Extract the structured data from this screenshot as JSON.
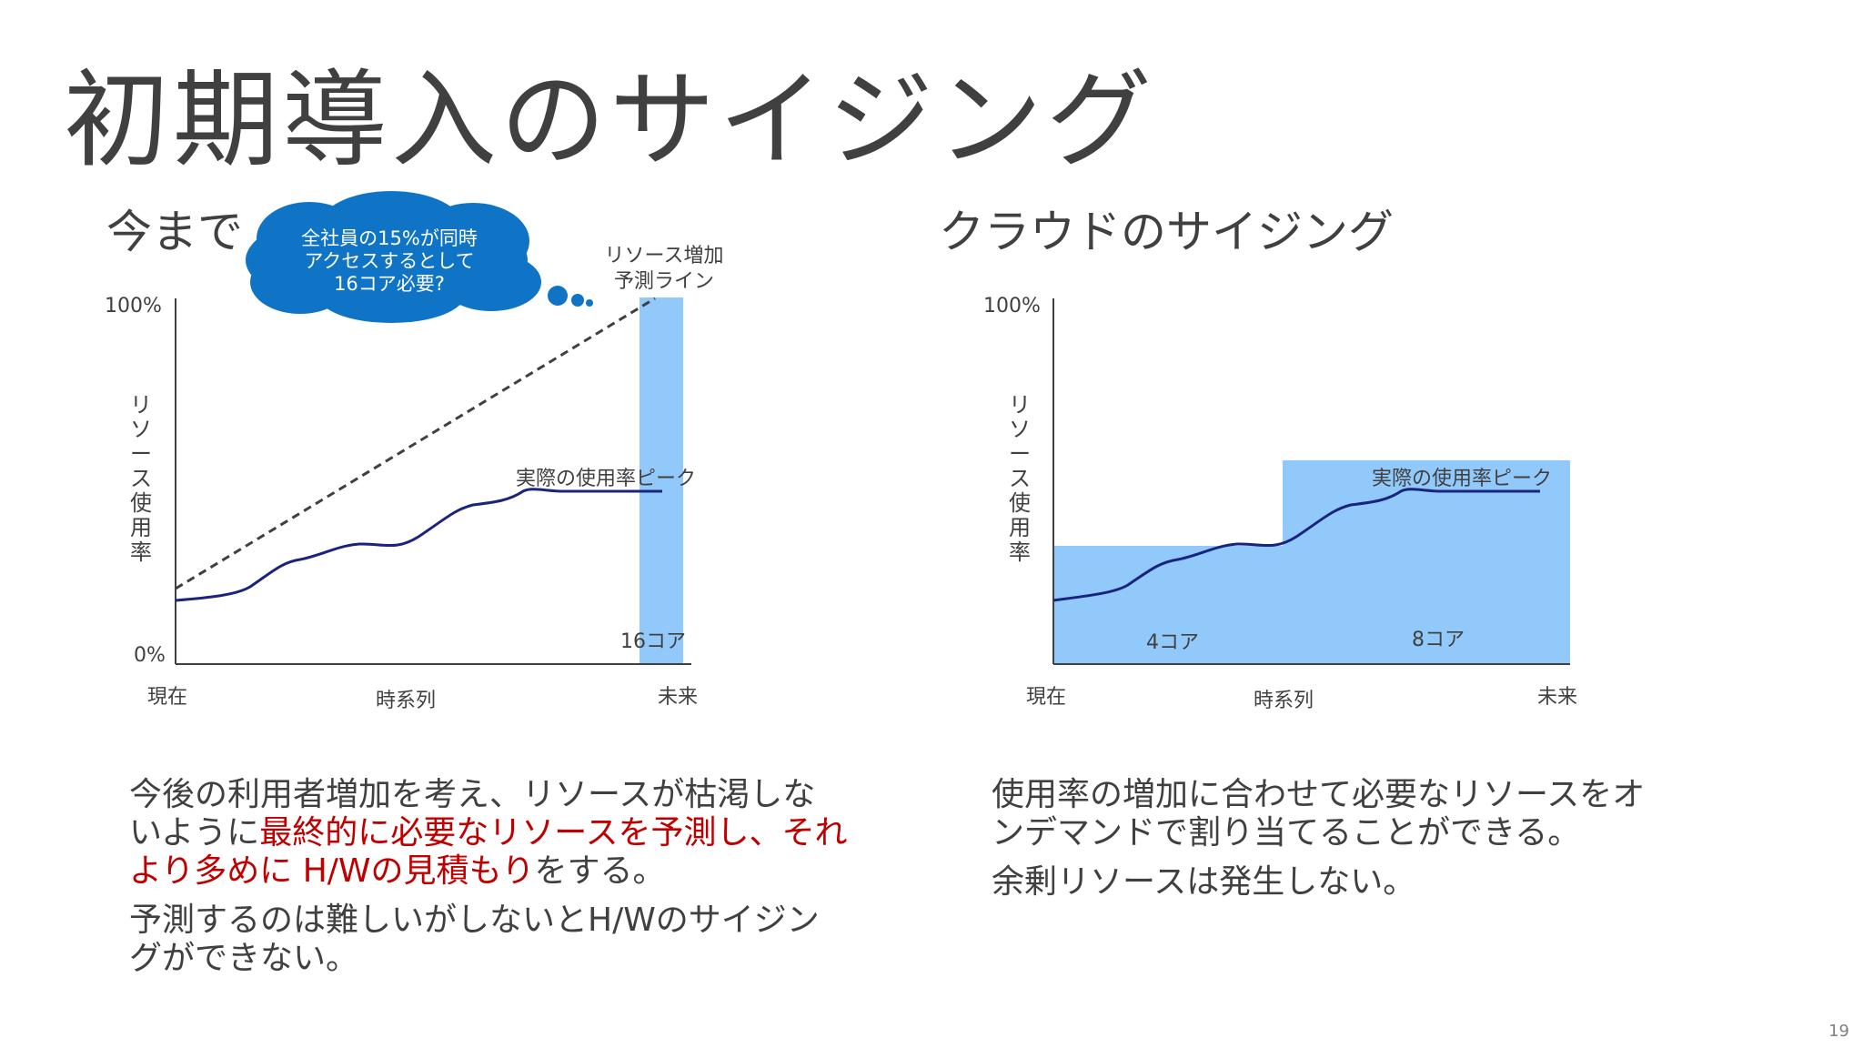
{
  "title": "初期導入のサイジング",
  "left": {
    "heading": "今まで",
    "bubble_lines": [
      "全社員の15%が同時",
      "アクセスするとして",
      "16コア必要?"
    ],
    "forecast_label_lines": [
      "リソース増加",
      "予測ライン"
    ],
    "y_top": "100%",
    "y_bottom": "0%",
    "y_axis_chars": [
      "リ",
      "ソ",
      "ー",
      "ス",
      "使",
      "用",
      "率"
    ],
    "peak_label": "実際の使用率ピーク",
    "bar_label": "16コア",
    "x_start": "現在",
    "x_mid": "時系列",
    "x_end": "未来",
    "paragraph1": {
      "normal1": "今後の利用者増加を考え、リソースが枯渇しないように",
      "red": "最終的に必要なリソースを予測し、それより多めに H/Wの見積もり",
      "normal2": "をする。"
    },
    "paragraph2": "予測するのは難しいがしないとH/Wのサイジングができない。"
  },
  "right": {
    "heading": "クラウドのサイジング",
    "y_top": "100%",
    "y_axis_chars": [
      "リ",
      "ソ",
      "ー",
      "ス",
      "使",
      "用",
      "率"
    ],
    "peak_label": "実際の使用率ピーク",
    "block1_label": "4コア",
    "block2_label": "8コア",
    "x_start": "現在",
    "x_mid": "時系列",
    "x_end": "未来",
    "paragraph1": "使用率の増加に合わせて必要なリソースをオンデマンドで割り当てることができる。",
    "paragraph2": "余剰リソースは発生しない。"
  },
  "page_number": "19",
  "colors": {
    "bar_fill": "#92c9fb",
    "usage_line": "#1a237e",
    "bubble": "#1074c6",
    "forecast_line": "#404040",
    "highlight_text": "#c00000"
  }
}
